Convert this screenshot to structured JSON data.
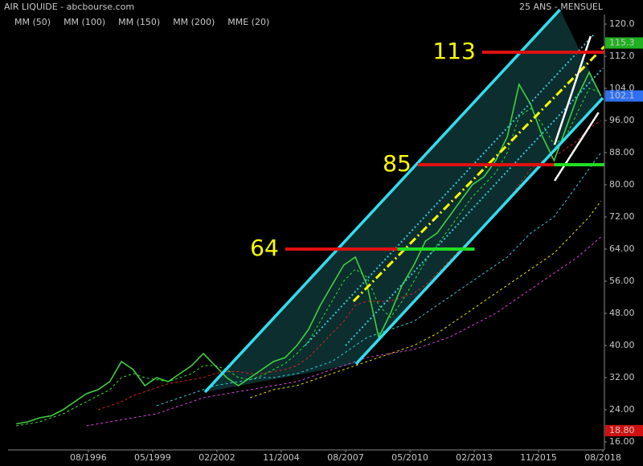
{
  "chart_data": {
    "type": "line",
    "title": "AIR LIQUIDE - abcbourse.com",
    "subtitle": "25 ANS - MENSUEL",
    "x": [
      1993.5,
      1994.0,
      1994.5,
      1995.0,
      1995.5,
      1996.0,
      1996.5,
      1997.0,
      1997.5,
      1998.0,
      1998.5,
      1999.0,
      1999.5,
      2000.0,
      2000.5,
      2001.0,
      2001.5,
      2002.0,
      2002.5,
      2003.0,
      2003.5,
      2004.0,
      2004.5,
      2005.0,
      2005.5,
      2006.0,
      2006.5,
      2007.0,
      2007.5,
      2008.0,
      2008.5,
      2009.0,
      2009.5,
      2010.0,
      2010.5,
      2011.0,
      2011.5,
      2012.0,
      2012.5,
      2013.0,
      2013.5,
      2014.0,
      2014.5,
      2015.0,
      2015.5,
      2016.0,
      2016.5,
      2017.0,
      2017.5,
      2018.0,
      2018.5
    ],
    "values": [
      20.5,
      21,
      22,
      22.5,
      24,
      26,
      28,
      29,
      31,
      36,
      34,
      30,
      32,
      31,
      33,
      35,
      38,
      35,
      32,
      30,
      32,
      34,
      36,
      37,
      40,
      44,
      50,
      55,
      60,
      62,
      55,
      42,
      48,
      55,
      60,
      66,
      68,
      72,
      76,
      80,
      82,
      86,
      92,
      105,
      100,
      92,
      86,
      94,
      102,
      108,
      102.1
    ],
    "color": "#3fd13f",
    "series": [
      {
        "name": "MM (50)",
        "color": "#e02020",
        "values": [
          null,
          null,
          null,
          null,
          null,
          null,
          null,
          24,
          25,
          26,
          27.5,
          28.5,
          29.5,
          30.5,
          31,
          31.5,
          32,
          33,
          33.5,
          33.5,
          33,
          33,
          33.5,
          34,
          35,
          37,
          40,
          43,
          46,
          50,
          51,
          51,
          51,
          52,
          53,
          55,
          58,
          61,
          64,
          67,
          70,
          73,
          76,
          80,
          84,
          86,
          87,
          89,
          91,
          94,
          96
        ]
      },
      {
        "name": "MM (100)",
        "color": "#33ccdd",
        "values": [
          null,
          null,
          null,
          null,
          null,
          null,
          null,
          null,
          null,
          null,
          null,
          null,
          25,
          26,
          27,
          28,
          29,
          30,
          30.5,
          31,
          31.5,
          32,
          32,
          32.5,
          33,
          34,
          35,
          36,
          38,
          40,
          42,
          43,
          44,
          45,
          46,
          48,
          50,
          52,
          54,
          56,
          58,
          60,
          62,
          65,
          68,
          70,
          72,
          76,
          80,
          84,
          88
        ]
      },
      {
        "name": "MM (150)",
        "color": "#e8e000",
        "values": [
          null,
          null,
          null,
          null,
          null,
          null,
          null,
          null,
          null,
          null,
          null,
          null,
          null,
          null,
          null,
          null,
          null,
          null,
          null,
          null,
          27,
          28,
          29,
          29.5,
          30,
          31,
          32,
          33,
          34,
          35,
          36,
          37,
          38,
          39,
          40,
          41.5,
          43,
          45,
          47,
          49,
          51,
          53,
          55,
          57,
          59,
          61,
          63,
          66,
          69,
          72,
          76
        ]
      },
      {
        "name": "MM (200)",
        "color": "#e040e0",
        "values": [
          null,
          null,
          null,
          null,
          null,
          null,
          20,
          20.5,
          21,
          21.5,
          22,
          22.5,
          23,
          24,
          25,
          26,
          27,
          27.5,
          28,
          28.5,
          29,
          29.5,
          30,
          30.5,
          31,
          32,
          33,
          34,
          35,
          36,
          37,
          37.5,
          38,
          38.5,
          39,
          40,
          41,
          42,
          43.5,
          45,
          46.5,
          48,
          50,
          52,
          54,
          56,
          58,
          60,
          62,
          64.5,
          67
        ]
      },
      {
        "name": "MME (20)",
        "color": "#30e030",
        "values": [
          20,
          20.5,
          21,
          22,
          23,
          24.5,
          26,
          27.5,
          29,
          32,
          33,
          32,
          31.5,
          31,
          32,
          33,
          35,
          35,
          34,
          32,
          31.5,
          32.5,
          34,
          35.5,
          38,
          41,
          46,
          51,
          56,
          59,
          57,
          50,
          47,
          51,
          56,
          61,
          65,
          69,
          73,
          77,
          80,
          83,
          88,
          97,
          99,
          95,
          90,
          92,
          98,
          104,
          103
        ]
      }
    ],
    "xlim": [
      1993.15,
      2018.65
    ],
    "ylim": [
      14,
      124
    ],
    "xticks": [
      {
        "value": 1996.583,
        "label": "08/1996"
      },
      {
        "value": 1999.333,
        "label": "05/1999"
      },
      {
        "value": 2002.083,
        "label": "02/2002"
      },
      {
        "value": 2004.833,
        "label": "11/2004"
      },
      {
        "value": 2007.583,
        "label": "08/2007"
      },
      {
        "value": 2010.333,
        "label": "05/2010"
      },
      {
        "value": 2013.083,
        "label": "02/2013"
      },
      {
        "value": 2015.833,
        "label": "11/2015"
      },
      {
        "value": 2018.583,
        "label": "08/2018"
      }
    ],
    "yticks": [
      {
        "value": 16,
        "label": "16.00"
      },
      {
        "value": 24,
        "label": "24.00"
      },
      {
        "value": 32,
        "label": "32.00"
      },
      {
        "value": 40,
        "label": "40.00"
      },
      {
        "value": 48,
        "label": "48.00"
      },
      {
        "value": 56,
        "label": "56.00"
      },
      {
        "value": 64,
        "label": "64.00"
      },
      {
        "value": 72,
        "label": "72.00"
      },
      {
        "value": 80,
        "label": "80.00"
      },
      {
        "value": 88,
        "label": "88.00"
      },
      {
        "value": 96,
        "label": "96.00"
      },
      {
        "value": 104,
        "label": "104.0"
      },
      {
        "value": 112,
        "label": "112.0"
      },
      {
        "value": 120,
        "label": "120.0"
      }
    ],
    "price_tags": [
      {
        "value": 115.3,
        "label": "115.3",
        "color": "#20b020"
      },
      {
        "value": 102.1,
        "label": "102.1",
        "color": "#3070f0"
      },
      {
        "value": 18.8,
        "label": "18.80",
        "color": "#d01010"
      }
    ],
    "levels": [
      {
        "value": 64,
        "x": [
          2005.0,
          2013.1
        ],
        "color": "#e01010"
      },
      {
        "value": 85,
        "x": [
          2010.67,
          2016.5
        ],
        "color": "#e01010"
      },
      {
        "value": 113,
        "x": [
          2013.42,
          2018.64
        ],
        "color": "#e01010"
      }
    ],
    "supports": [
      {
        "value": 64,
        "x": [
          2009.8,
          2013.1
        ],
        "color": "#22dd22"
      },
      {
        "value": 85,
        "x": [
          2016.5,
          2018.64
        ],
        "color": "#22dd22"
      }
    ],
    "channel_fill": "#0f3a3a",
    "trendlines": [
      {
        "x": [
          2001.57,
          2016.75
        ],
        "y": [
          28.4,
          123.6
        ],
        "color": "#33ddee",
        "width": 3.5,
        "style": "solid"
      },
      {
        "x": [
          2008.03,
          2018.58
        ],
        "y": [
          35.4,
          101.6
        ],
        "color": "#33ddee",
        "width": 3.5,
        "style": "solid"
      },
      {
        "x": [
          2005.86,
          2018.23
        ],
        "y": [
          40,
          117.6
        ],
        "color": "#33ccdd",
        "width": 2,
        "style": "dotted"
      },
      {
        "x": [
          2007.58,
          2018.58
        ],
        "y": [
          40,
          109
        ],
        "color": "#33ccdd",
        "width": 2,
        "style": "dotted"
      },
      {
        "x": [
          2007.92,
          2018.64
        ],
        "y": [
          51,
          114.4
        ],
        "color": "#ffff00",
        "width": 3,
        "style": "dashdot"
      },
      {
        "x": [
          2016.52,
          2018.06
        ],
        "y": [
          90,
          117
        ],
        "color": "#ffffff",
        "width": 2.5,
        "style": "solid"
      },
      {
        "x": [
          2016.52,
          2018.4
        ],
        "y": [
          81,
          98
        ],
        "color": "#ffffff",
        "width": 2.5,
        "style": "solid"
      }
    ]
  }
}
